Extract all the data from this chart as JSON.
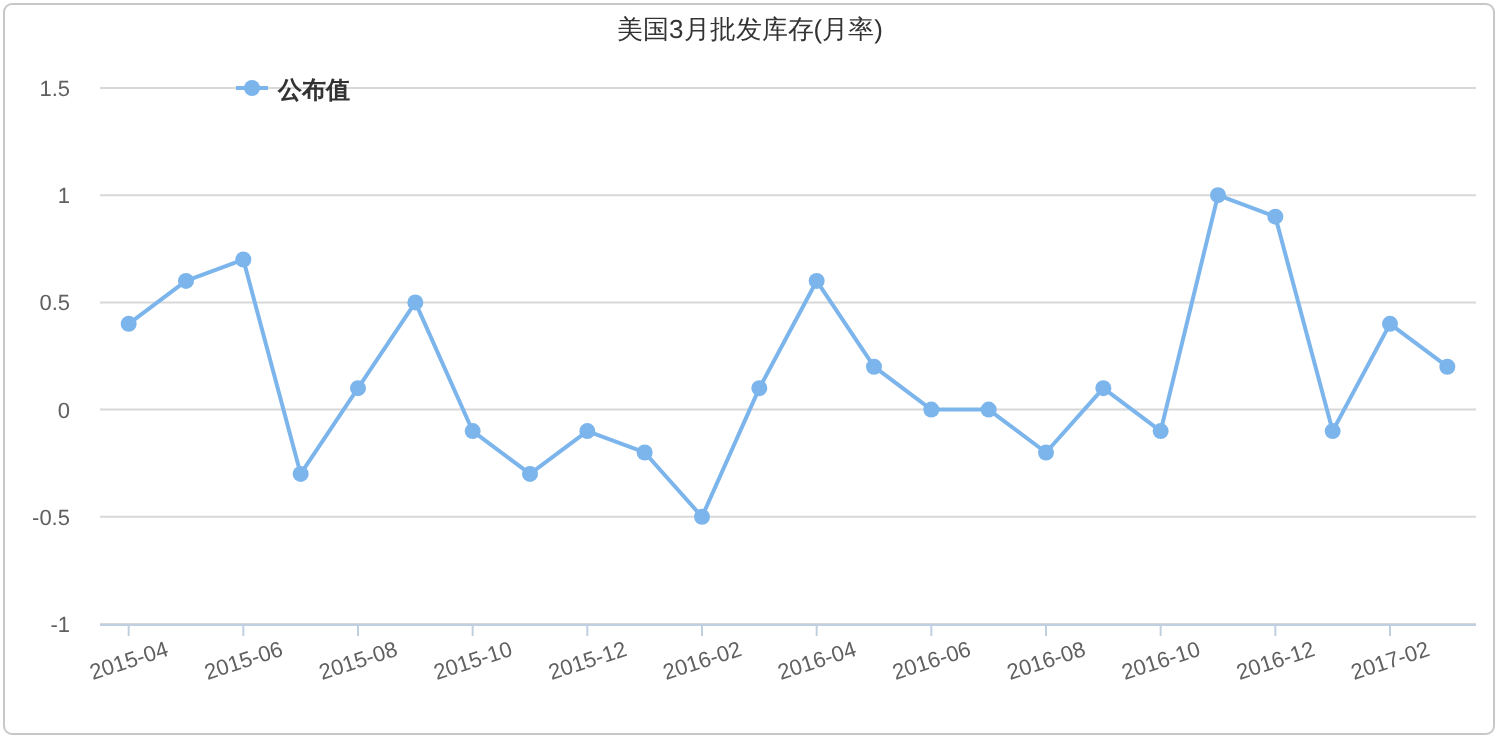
{
  "chart_data": {
    "type": "line",
    "title": "美国3月批发库存(月率)",
    "categories": [
      "2015-04",
      null,
      "2015-06",
      null,
      "2015-08",
      null,
      "2015-10",
      null,
      "2015-12",
      null,
      "2016-02",
      null,
      "2016-04",
      null,
      "2016-06",
      null,
      "2016-08",
      null,
      "2016-10",
      null,
      "2016-12",
      null,
      "2017-02",
      null
    ],
    "series": [
      {
        "name": "公布值",
        "color": "#7cb5ec",
        "values": [
          0.4,
          0.6,
          0.7,
          -0.3,
          0.1,
          0.5,
          -0.1,
          -0.3,
          -0.1,
          -0.2,
          -0.5,
          0.1,
          0.6,
          0.2,
          0,
          0,
          -0.2,
          0.1,
          -0.1,
          1,
          0.9,
          -0.1,
          0.4,
          0.2
        ]
      }
    ],
    "ylim": [
      -1,
      1.5
    ],
    "yticks": [
      -1,
      -0.5,
      0,
      0.5,
      1,
      1.5
    ],
    "grid": "y",
    "legend": "top left",
    "marker": "circle"
  }
}
